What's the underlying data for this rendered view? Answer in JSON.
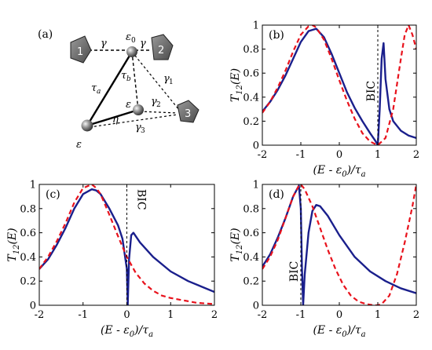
{
  "figure": {
    "panel_a": {
      "label": "(a)",
      "symbols": {
        "gamma": "γ",
        "gamma1": "γ",
        "gamma2": "γ",
        "gamma3": "γ",
        "sub1": "1",
        "sub2": "2",
        "sub3": "3",
        "eps0": "ε",
        "eps0_sub": "0",
        "eps": "ε",
        "tau_a": "τ",
        "tau_a_sub": "a",
        "tau_b": "τ",
        "tau_b_sub": "b",
        "eta": "η"
      },
      "leads": [
        "1",
        "2",
        "3"
      ]
    },
    "common_text": {
      "ylabel_main": "T",
      "ylabel_sub": "12",
      "ylabel_arg": "(E)",
      "xlabel_pre": "(E - ε",
      "xlabel_sub0": "0",
      "xlabel_mid": ")/τ",
      "xlabel_suba": "a",
      "bic": "BIC"
    }
  },
  "chart_data": [
    {
      "panel": "(b)",
      "type": "line",
      "xlim": [
        -2,
        2
      ],
      "ylim": [
        0,
        1
      ],
      "xticks": [
        "-2",
        "-1",
        "0",
        "1",
        "2"
      ],
      "yticks": [
        "0",
        "0.2",
        "0.4",
        "0.6",
        "0.8",
        "1"
      ],
      "bic_x": 1.0,
      "series": [
        {
          "style": "solid",
          "color": "#1a1f8c",
          "x": [
            -2,
            -1.8,
            -1.6,
            -1.4,
            -1.2,
            -1.0,
            -0.8,
            -0.6,
            -0.4,
            -0.2,
            0,
            0.2,
            0.4,
            0.6,
            0.8,
            0.95,
            1.0,
            1.05,
            1.1,
            1.15,
            1.2,
            1.3,
            1.4,
            1.6,
            1.8,
            2.0
          ],
          "y": [
            0.28,
            0.36,
            0.46,
            0.58,
            0.72,
            0.86,
            0.95,
            0.97,
            0.9,
            0.76,
            0.6,
            0.44,
            0.31,
            0.2,
            0.1,
            0.03,
            0.0,
            0.3,
            0.72,
            0.85,
            0.55,
            0.3,
            0.2,
            0.12,
            0.08,
            0.06
          ]
        },
        {
          "style": "dashed",
          "color": "#e8121c",
          "x": [
            -2,
            -1.8,
            -1.6,
            -1.4,
            -1.2,
            -1.0,
            -0.8,
            -0.7,
            -0.6,
            -0.4,
            -0.2,
            0,
            0.2,
            0.4,
            0.6,
            0.8,
            1.0,
            1.2,
            1.4,
            1.6,
            1.7,
            1.8,
            1.9,
            2.0
          ],
          "y": [
            0.27,
            0.36,
            0.48,
            0.62,
            0.78,
            0.92,
            0.99,
            1.0,
            0.98,
            0.88,
            0.72,
            0.54,
            0.37,
            0.22,
            0.1,
            0.03,
            0.0,
            0.06,
            0.3,
            0.72,
            0.92,
            1.0,
            0.92,
            0.8
          ]
        }
      ]
    },
    {
      "panel": "(c)",
      "type": "line",
      "xlim": [
        -2,
        2
      ],
      "ylim": [
        0,
        1
      ],
      "xticks": [
        "-2",
        "-1",
        "0",
        "1",
        "2"
      ],
      "yticks": [
        "0",
        "0.2",
        "0.4",
        "0.6",
        "0.8",
        "1"
      ],
      "bic_x": 0.0,
      "series": [
        {
          "style": "solid",
          "color": "#1a1f8c",
          "x": [
            -2,
            -1.8,
            -1.6,
            -1.4,
            -1.2,
            -1.0,
            -0.8,
            -0.7,
            -0.6,
            -0.4,
            -0.2,
            -0.1,
            0.0,
            0.02,
            0.05,
            0.1,
            0.15,
            0.3,
            0.6,
            1.0,
            1.4,
            2.0
          ],
          "y": [
            0.3,
            0.38,
            0.5,
            0.64,
            0.8,
            0.92,
            0.96,
            0.95,
            0.92,
            0.8,
            0.66,
            0.55,
            0.3,
            0.0,
            0.38,
            0.58,
            0.6,
            0.52,
            0.4,
            0.28,
            0.2,
            0.11
          ]
        },
        {
          "style": "dashed",
          "color": "#e8121c",
          "x": [
            -2,
            -1.8,
            -1.6,
            -1.4,
            -1.2,
            -1.0,
            -0.8,
            -0.7,
            -0.6,
            -0.4,
            -0.2,
            0,
            0.2,
            0.4,
            0.6,
            0.8,
            1.0,
            1.3,
            1.6,
            2.0
          ],
          "y": [
            0.3,
            0.4,
            0.53,
            0.68,
            0.85,
            0.97,
            1.0,
            0.97,
            0.92,
            0.75,
            0.57,
            0.4,
            0.27,
            0.18,
            0.12,
            0.08,
            0.06,
            0.04,
            0.02,
            0.01
          ]
        }
      ]
    },
    {
      "panel": "(d)",
      "type": "line",
      "xlim": [
        -2,
        2
      ],
      "ylim": [
        0,
        1
      ],
      "xticks": [
        "-2",
        "-1",
        "0",
        "1",
        "2"
      ],
      "yticks": [
        "0",
        "0.2",
        "0.4",
        "0.6",
        "0.8",
        "1"
      ],
      "bic_x": -1.0,
      "series": [
        {
          "style": "solid",
          "color": "#1a1f8c",
          "x": [
            -2,
            -1.8,
            -1.6,
            -1.4,
            -1.2,
            -1.05,
            -1.0,
            -0.97,
            -0.94,
            -0.9,
            -0.8,
            -0.7,
            -0.6,
            -0.5,
            -0.3,
            0.0,
            0.4,
            0.8,
            1.2,
            1.6,
            2.0
          ],
          "y": [
            0.32,
            0.42,
            0.56,
            0.72,
            0.9,
            0.99,
            0.8,
            0.3,
            0.0,
            0.25,
            0.6,
            0.78,
            0.83,
            0.82,
            0.74,
            0.58,
            0.4,
            0.28,
            0.2,
            0.14,
            0.1
          ]
        },
        {
          "style": "dashed",
          "color": "#e8121c",
          "x": [
            -2,
            -1.8,
            -1.6,
            -1.4,
            -1.2,
            -1.05,
            -1.0,
            -0.9,
            -0.7,
            -0.5,
            -0.3,
            -0.1,
            0.1,
            0.3,
            0.5,
            0.7,
            0.9,
            1.0,
            1.1,
            1.3,
            1.5,
            1.7,
            1.9,
            2.0
          ],
          "y": [
            0.3,
            0.4,
            0.54,
            0.72,
            0.9,
            0.99,
            1.0,
            0.96,
            0.82,
            0.64,
            0.46,
            0.3,
            0.17,
            0.08,
            0.03,
            0.01,
            0.0,
            0.0,
            0.01,
            0.08,
            0.26,
            0.52,
            0.82,
            1.0
          ]
        }
      ]
    }
  ]
}
